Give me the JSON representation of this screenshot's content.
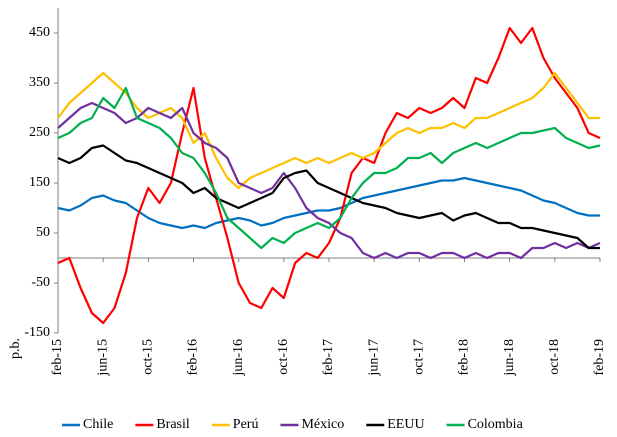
{
  "chart_data": {
    "type": "line",
    "y_label": "p.b.",
    "categories": [
      "feb-15",
      null,
      null,
      null,
      "jun-15",
      null,
      null,
      null,
      "oct-15",
      null,
      null,
      null,
      "feb-16",
      null,
      null,
      null,
      "jun-16",
      null,
      null,
      null,
      "oct-16",
      null,
      null,
      null,
      "feb-17",
      null,
      null,
      null,
      "jun-17",
      null,
      null,
      null,
      "oct-17",
      null,
      null,
      null,
      "feb-18",
      null,
      null,
      null,
      "jun-18",
      null,
      null,
      null,
      "oct-18",
      null,
      null,
      null,
      "feb-19"
    ],
    "series": [
      {
        "name": "Chile",
        "color": "#0070c0",
        "values": [
          100,
          95,
          105,
          120,
          125,
          115,
          110,
          95,
          80,
          70,
          65,
          60,
          65,
          60,
          70,
          75,
          80,
          75,
          65,
          70,
          80,
          85,
          90,
          95,
          95,
          100,
          110,
          120,
          125,
          130,
          135,
          140,
          145,
          150,
          155,
          155,
          160,
          155,
          150,
          145,
          140,
          135,
          125,
          115,
          110,
          100,
          90,
          85,
          85
        ]
      },
      {
        "name": "Brasil",
        "color": "#ff0000",
        "values": [
          -10,
          0,
          -60,
          -110,
          -130,
          -100,
          -30,
          80,
          140,
          110,
          150,
          250,
          340,
          200,
          120,
          40,
          -50,
          -90,
          -100,
          -60,
          -80,
          -10,
          10,
          0,
          30,
          80,
          170,
          200,
          190,
          250,
          290,
          280,
          300,
          290,
          300,
          320,
          300,
          360,
          350,
          400,
          460,
          430,
          460,
          400,
          360,
          330,
          300,
          250,
          240
        ]
      },
      {
        "name": "Perú",
        "color": "#ffc000",
        "values": [
          280,
          310,
          330,
          350,
          370,
          350,
          330,
          300,
          280,
          290,
          300,
          280,
          230,
          250,
          200,
          160,
          140,
          160,
          170,
          180,
          190,
          200,
          190,
          200,
          190,
          200,
          210,
          200,
          210,
          230,
          250,
          260,
          250,
          260,
          260,
          270,
          260,
          280,
          280,
          290,
          300,
          310,
          320,
          340,
          370,
          340,
          310,
          280,
          280
        ]
      },
      {
        "name": "México",
        "color": "#7030a0",
        "values": [
          260,
          280,
          300,
          310,
          300,
          290,
          270,
          280,
          300,
          290,
          280,
          300,
          250,
          230,
          220,
          200,
          150,
          140,
          130,
          140,
          170,
          140,
          100,
          80,
          70,
          50,
          40,
          10,
          0,
          10,
          0,
          10,
          10,
          0,
          10,
          10,
          0,
          10,
          0,
          10,
          10,
          0,
          20,
          20,
          30,
          20,
          30,
          20,
          30
        ]
      },
      {
        "name": "EEUU",
        "color": "#000000",
        "values": [
          200,
          190,
          200,
          220,
          225,
          210,
          195,
          190,
          180,
          170,
          160,
          150,
          130,
          140,
          120,
          110,
          100,
          110,
          120,
          130,
          160,
          170,
          175,
          150,
          140,
          130,
          120,
          110,
          105,
          100,
          90,
          85,
          80,
          85,
          90,
          75,
          85,
          90,
          80,
          70,
          70,
          60,
          60,
          55,
          50,
          45,
          40,
          20,
          20
        ]
      },
      {
        "name": "Colombia",
        "color": "#00b050",
        "values": [
          240,
          250,
          270,
          280,
          320,
          300,
          340,
          280,
          270,
          260,
          240,
          210,
          200,
          170,
          130,
          80,
          60,
          40,
          20,
          40,
          30,
          50,
          60,
          70,
          60,
          80,
          120,
          150,
          170,
          170,
          180,
          200,
          200,
          210,
          190,
          210,
          220,
          230,
          220,
          230,
          240,
          250,
          250,
          255,
          260,
          240,
          230,
          220,
          225
        ]
      }
    ],
    "ylim": [
      -150,
      500
    ],
    "yticks": [
      -150,
      -50,
      50,
      150,
      250,
      350,
      450
    ],
    "grid": false
  }
}
